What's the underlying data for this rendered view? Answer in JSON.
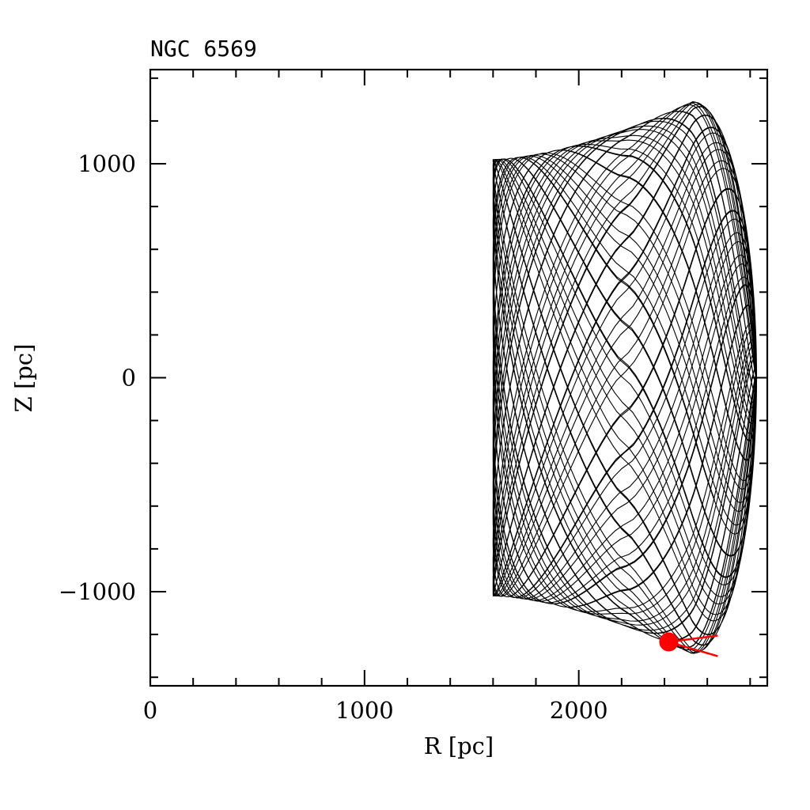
{
  "chart_data": {
    "type": "line",
    "title": "NGC 6569",
    "xlabel": "R [pc]",
    "ylabel": "Z [pc]",
    "xlim": [
      0,
      2880
    ],
    "ylim": [
      -1440,
      1440
    ],
    "x_ticks": [
      {
        "value": 0,
        "label": "0"
      },
      {
        "value": 1000,
        "label": "1000"
      },
      {
        "value": 2000,
        "label": "2000"
      }
    ],
    "y_ticks": [
      {
        "value": 1000,
        "label": "1000"
      },
      {
        "value": 0,
        "label": "0"
      },
      {
        "value": -1000,
        "label": "−1000"
      }
    ],
    "x_minor_step": 200,
    "y_minor_step": 200,
    "grid": false,
    "orbit": {
      "r_min": 1600,
      "r_max": 2830,
      "z_at_r_min": 1020,
      "z_at_apex": 1290,
      "r_at_apex": 2530,
      "color": "#000000"
    },
    "current_position": {
      "r": 2420,
      "z": -1235,
      "color": "#ff0000"
    }
  }
}
